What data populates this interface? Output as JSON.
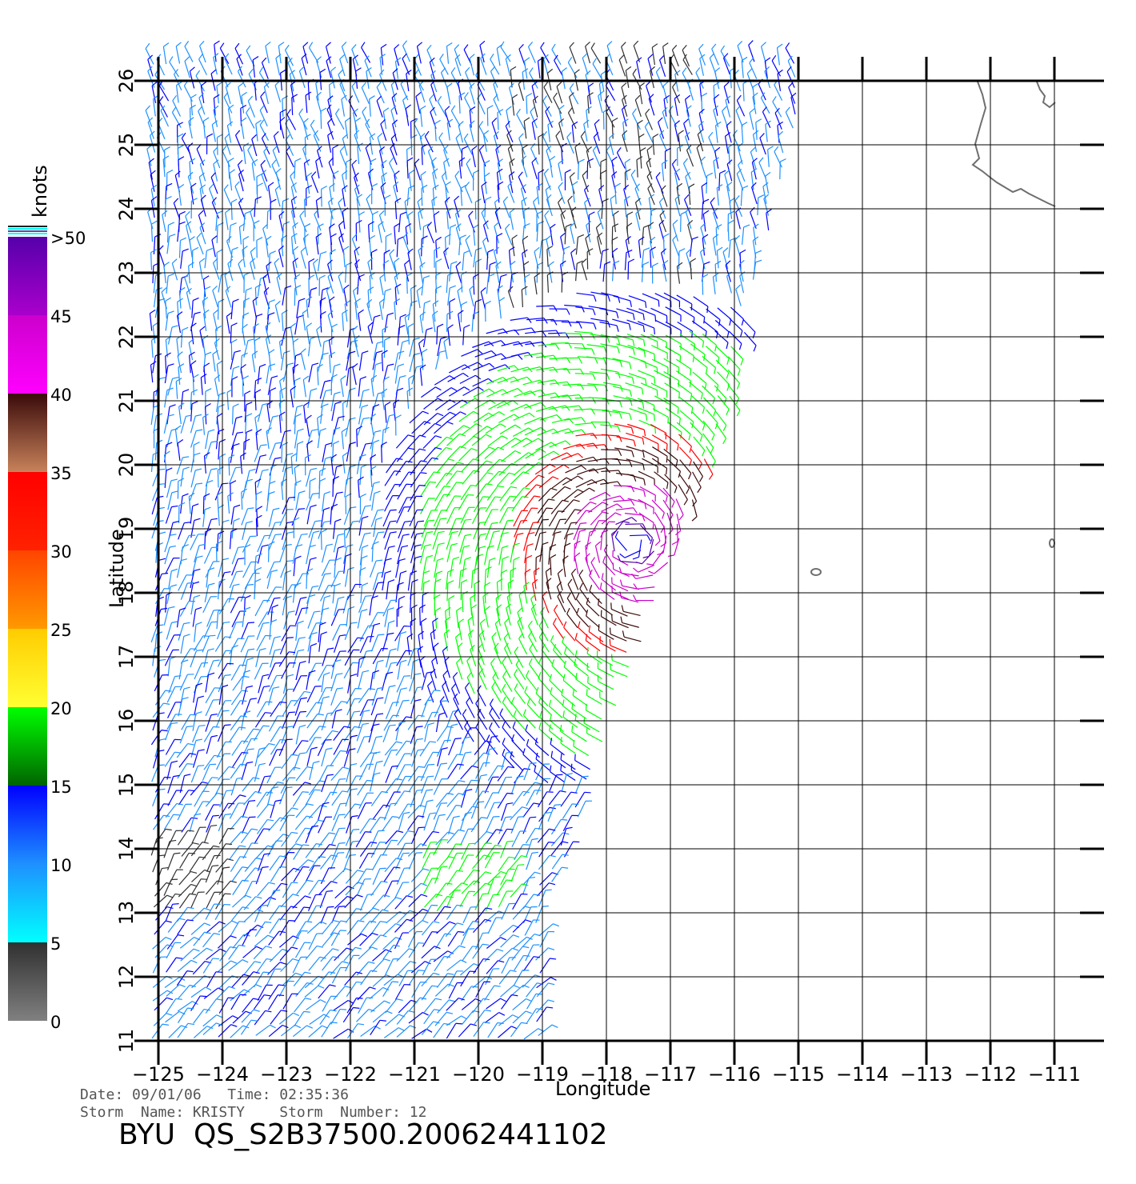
{
  "colorbar": {
    "unit": "knots",
    "labels": [
      "0",
      "5",
      "10",
      "15",
      "20",
      "25",
      "30",
      "35",
      "40",
      "45",
      ">50"
    ],
    "bins": [
      {
        "from": 0,
        "to": 5,
        "colors": [
          "#808080",
          "#303030"
        ]
      },
      {
        "from": 5,
        "to": 10,
        "colors": [
          "#00ffff",
          "#1e90ff"
        ]
      },
      {
        "from": 10,
        "to": 15,
        "colors": [
          "#1e90ff",
          "#0000ff"
        ]
      },
      {
        "from": 15,
        "to": 20,
        "colors": [
          "#006400",
          "#00ff00"
        ]
      },
      {
        "from": 20,
        "to": 25,
        "colors": [
          "#ffff33",
          "#ffcc00"
        ]
      },
      {
        "from": 25,
        "to": 30,
        "colors": [
          "#ff9900",
          "#ff4400"
        ]
      },
      {
        "from": 30,
        "to": 35,
        "colors": [
          "#ff2200",
          "#ff0000"
        ]
      },
      {
        "from": 35,
        "to": 40,
        "colors": [
          "#c8825a",
          "#3a0a0a"
        ]
      },
      {
        "from": 40,
        "to": 45,
        "colors": [
          "#ff00ff",
          "#cc00cc"
        ]
      },
      {
        "from": 45,
        "to": 50,
        "colors": [
          "#aa00cc",
          "#5500aa"
        ]
      }
    ]
  },
  "axes": {
    "xlabel": "Longitude",
    "ylabel": "Latitude",
    "lon_ticks": [
      "−125",
      "−124",
      "−123",
      "−122",
      "−121",
      "−120",
      "−119",
      "−118",
      "−117",
      "−116",
      "−115",
      "−114",
      "−113",
      "−112",
      "−111"
    ],
    "lat_ticks": [
      "11",
      "12",
      "13",
      "14",
      "15",
      "16",
      "17",
      "18",
      "19",
      "20",
      "21",
      "22",
      "23",
      "24",
      "25",
      "26"
    ],
    "lon_range": [
      -125,
      -111
    ],
    "lat_range": [
      11,
      26
    ],
    "grid": true
  },
  "storm": {
    "name": "KRISTY",
    "number": 12,
    "center_lon": -117.6,
    "center_lat": 18.8
  },
  "footer": {
    "line1": "Date: 09/01/06   Time: 02:35:36",
    "line2": "Storm  Name: KRISTY    Storm  Number: 12",
    "title": "BYU  QS_S2B37500.20062441102"
  },
  "colors": {
    "grid": "#000000",
    "coast": "#6e6e6e"
  }
}
